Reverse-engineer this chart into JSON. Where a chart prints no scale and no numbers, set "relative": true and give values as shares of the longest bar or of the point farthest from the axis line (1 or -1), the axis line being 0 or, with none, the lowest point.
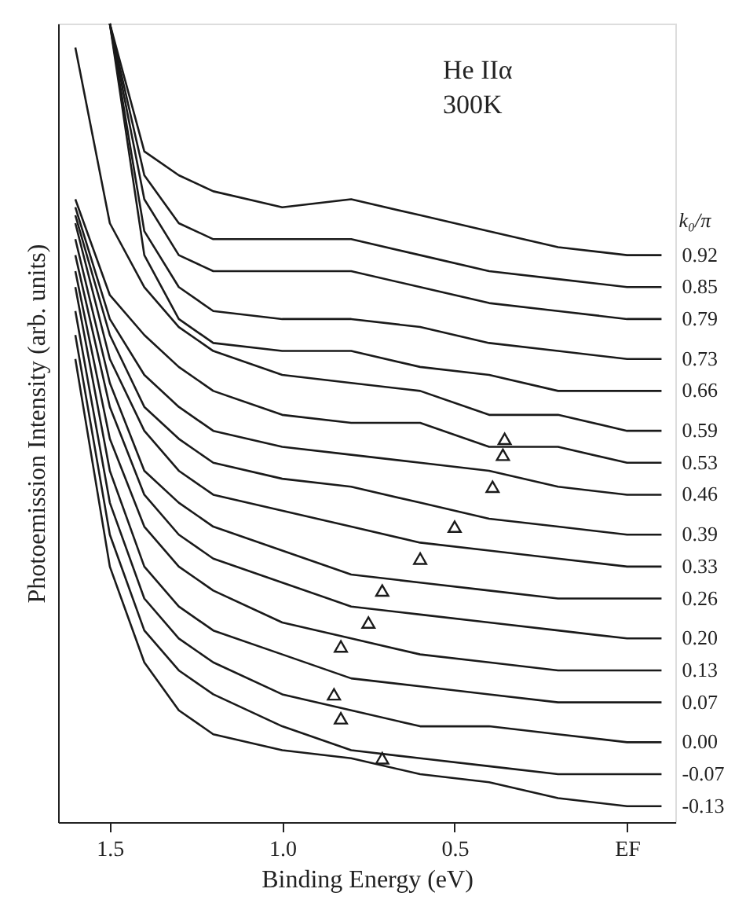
{
  "chart_data": {
    "type": "line",
    "relative": true,
    "xlabel": "Binding Energy (eV)",
    "ylabel": "Photoemission Intensity (arb. units)",
    "legend_title": "k₀/π",
    "annotations": [
      "He IIα",
      "300K"
    ],
    "x": [
      1.6,
      1.5,
      1.4,
      1.3,
      1.2,
      1.0,
      0.8,
      0.6,
      0.4,
      0.2,
      0.0,
      -0.1
    ],
    "xlim": [
      1.65,
      -0.14
    ],
    "xticks": [
      1.5,
      {
        "value": 1.0,
        "label": "1.0"
      },
      0.5,
      {
        "value": 0,
        "label": "EF"
      }
    ],
    "grid": false,
    "marker": "none",
    "line_style": "solid",
    "series": [
      {
        "name": "0.92",
        "color": "#1a1a1a",
        "values": [
          null,
          1.0,
          0.84,
          0.81,
          0.79,
          0.77,
          0.78,
          0.76,
          0.74,
          0.72,
          0.71,
          0.71
        ]
      },
      {
        "name": "0.85",
        "color": "#1a1a1a",
        "values": [
          null,
          1.0,
          0.81,
          0.75,
          0.73,
          0.73,
          0.73,
          0.71,
          0.69,
          0.68,
          0.67,
          0.67
        ]
      },
      {
        "name": "0.79",
        "color": "#1a1a1a",
        "values": [
          null,
          1.0,
          0.78,
          0.71,
          0.69,
          0.69,
          0.69,
          0.67,
          0.65,
          0.64,
          0.63,
          0.63
        ]
      },
      {
        "name": "0.73",
        "color": "#1a1a1a",
        "values": [
          null,
          1.0,
          0.74,
          0.67,
          0.64,
          0.63,
          0.63,
          0.62,
          0.6,
          0.59,
          0.58,
          0.58
        ]
      },
      {
        "name": "0.66",
        "color": "#1a1a1a",
        "values": [
          null,
          1.0,
          0.71,
          0.63,
          0.6,
          0.59,
          0.59,
          0.57,
          0.56,
          0.54,
          0.54,
          0.54
        ]
      },
      {
        "name": "0.59",
        "color": "#1a1a1a",
        "values": [
          0.97,
          0.75,
          0.67,
          0.62,
          0.59,
          0.56,
          0.55,
          0.54,
          0.51,
          0.51,
          0.49,
          0.49
        ]
      },
      {
        "name": "0.53",
        "color": "#1a1a1a",
        "values": [
          0.78,
          0.66,
          0.61,
          0.57,
          0.54,
          0.51,
          0.5,
          0.5,
          0.47,
          0.47,
          0.45,
          0.45
        ]
      },
      {
        "name": "0.46",
        "color": "#1a1a1a",
        "values": [
          0.77,
          0.63,
          0.56,
          0.52,
          0.49,
          0.47,
          0.46,
          0.45,
          0.44,
          0.42,
          0.41,
          0.41
        ]
      },
      {
        "name": "0.39",
        "color": "#1a1a1a",
        "values": [
          0.76,
          0.61,
          0.52,
          0.48,
          0.45,
          0.43,
          0.42,
          0.4,
          0.38,
          0.37,
          0.36,
          0.36
        ]
      },
      {
        "name": "0.33",
        "color": "#1a1a1a",
        "values": [
          0.75,
          0.58,
          0.49,
          0.44,
          0.41,
          0.39,
          0.37,
          0.35,
          0.34,
          0.33,
          0.32,
          0.32
        ]
      },
      {
        "name": "0.26",
        "color": "#1a1a1a",
        "values": [
          0.73,
          0.55,
          0.44,
          0.4,
          0.37,
          0.34,
          0.31,
          0.3,
          0.29,
          0.28,
          0.28,
          0.28
        ]
      },
      {
        "name": "0.20",
        "color": "#1a1a1a",
        "values": [
          0.71,
          0.52,
          0.41,
          0.36,
          0.33,
          0.3,
          0.27,
          0.26,
          0.25,
          0.24,
          0.23,
          0.23
        ]
      },
      {
        "name": "0.13",
        "color": "#1a1a1a",
        "values": [
          0.69,
          0.48,
          0.37,
          0.32,
          0.29,
          0.25,
          0.23,
          0.21,
          0.2,
          0.19,
          0.19,
          0.19
        ]
      },
      {
        "name": "0.07",
        "color": "#1a1a1a",
        "values": [
          0.67,
          0.44,
          0.32,
          0.27,
          0.24,
          0.21,
          0.18,
          0.17,
          0.16,
          0.15,
          0.15,
          0.15
        ]
      },
      {
        "name": "0.00",
        "color": "#1a1a1a",
        "values": [
          0.64,
          0.4,
          0.28,
          0.23,
          0.2,
          0.16,
          0.14,
          0.12,
          0.12,
          0.11,
          0.1,
          0.1
        ]
      },
      {
        "name": "-0.07",
        "color": "#1a1a1a",
        "values": [
          0.61,
          0.36,
          0.24,
          0.19,
          0.16,
          0.12,
          0.09,
          0.08,
          0.07,
          0.06,
          0.06,
          0.06
        ]
      },
      {
        "name": "-0.13",
        "color": "#1a1a1a",
        "values": [
          0.58,
          0.32,
          0.2,
          0.14,
          0.11,
          0.09,
          0.08,
          0.06,
          0.05,
          0.03,
          0.02,
          0.02
        ]
      },
      {
        "type": "scatter",
        "marker": "triangle",
        "color": "#1a1a1a",
        "x": [
          0.355,
          0.36,
          0.39,
          0.5,
          0.6,
          0.71,
          0.75,
          0.83,
          0.85,
          0.83,
          0.71
        ],
        "values": [
          0.48,
          0.46,
          0.42,
          0.37,
          0.33,
          0.29,
          0.25,
          0.22,
          0.16,
          0.13,
          0.08
        ]
      }
    ]
  }
}
